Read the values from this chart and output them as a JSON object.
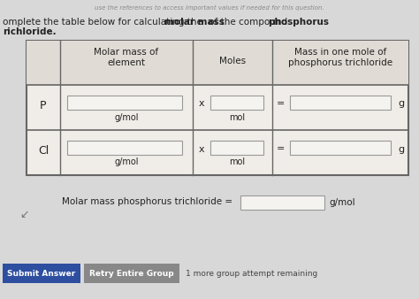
{
  "page_bg": "#d8d8d8",
  "top_text": "use the references to access important values if needed for this question.",
  "title_normal1": "omplete the table below for calculating the ",
  "title_bold1": "molar mass",
  "title_normal2": " of the compound ",
  "title_bold2": "phosphorus",
  "title_line2": "richloride.",
  "header_col1": "Molar mass of\nelement",
  "header_col2": "Moles",
  "header_col3": "Mass in one mole of\nphosphorus trichloride",
  "row1_element": "P",
  "row2_element": "Cl",
  "unit_g_mol": "g/mol",
  "unit_mol": "mol",
  "unit_g": "g",
  "operator_x": "x",
  "operator_eq": "=",
  "footer_text": "Molar mass phosphorus trichloride =",
  "footer_unit": "g/mol",
  "btn1_text": "Submit Answer",
  "btn2_text": "Retry Entire Group",
  "btn1_bg": "#2e4fa0",
  "btn2_bg": "#888888",
  "btn_text_color": "#ffffff",
  "note_text": "1 more group attempt remaining",
  "table_border": "#666666",
  "input_box_color": "#f5f3f0",
  "table_bg": "#f0ede8",
  "header_bg": "#e0dbd4",
  "text_color": "#222222",
  "light_text": "#555555"
}
